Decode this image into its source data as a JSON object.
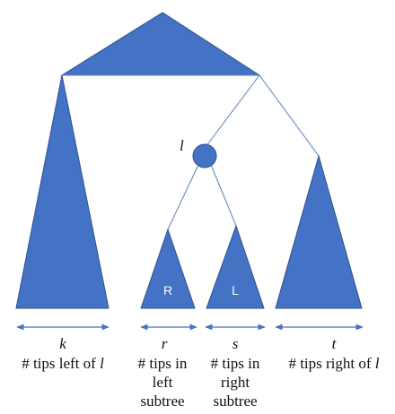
{
  "node_label": "l",
  "subtrees": {
    "left_subtree_letter": "R",
    "right_subtree_letter": "L"
  },
  "counts": {
    "k": {
      "variable": "k",
      "caption_lines": [
        "# tips left of "
      ],
      "caption_var": "l"
    },
    "r": {
      "variable": "r",
      "caption_lines": [
        "# tips in",
        "left",
        "subtree"
      ]
    },
    "s": {
      "variable": "s",
      "caption_lines": [
        "# tips in",
        "right",
        "subtree"
      ]
    },
    "t": {
      "variable": "t",
      "caption_lines": [
        "# tips right of "
      ],
      "caption_var": "l"
    }
  },
  "colors": {
    "fill": "#4472C4",
    "stroke": "#2F528F",
    "edge": "#5B7FB8"
  }
}
